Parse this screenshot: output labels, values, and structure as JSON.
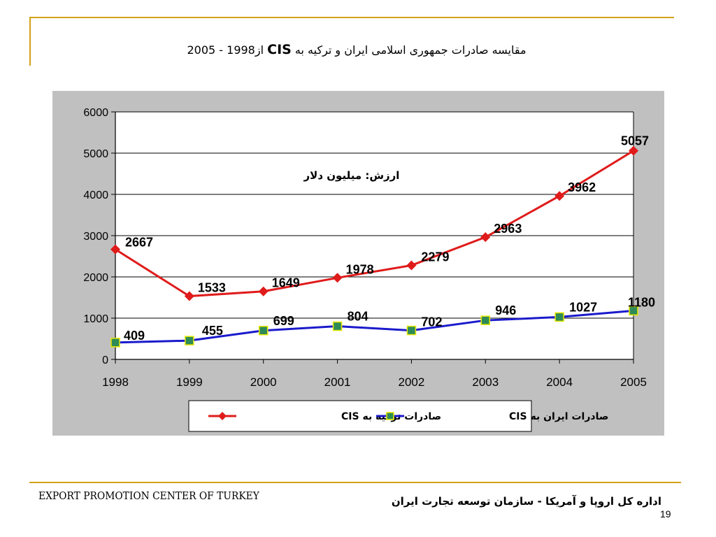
{
  "slide": {
    "title_text": "مقایسه صادرات جمهوری اسلامی ایران و ترکیه به",
    "title_cis": "CIS",
    "title_range": "از1998 - 2005",
    "footer_left": "EXPORT PROMOTION CENTER OF TURKEY",
    "footer_right": "اداره کل اروپا و آمریکا - سازمان توسعه تجارت ایران",
    "page_number": "19"
  },
  "chart_data": {
    "type": "line",
    "title": "",
    "annotation": "ارزش: میلیون دلار",
    "xlabel": "",
    "ylabel": "",
    "x": [
      "1998",
      "1999",
      "2000",
      "2001",
      "2002",
      "2003",
      "2004",
      "2005"
    ],
    "ylim": [
      0,
      6000
    ],
    "yticks": [
      "0",
      "1000",
      "2000",
      "3000",
      "4000",
      "5000",
      "6000"
    ],
    "grid": true,
    "legend_position": "bottom",
    "series": [
      {
        "name": "صادرات ترکیه به CIS",
        "color": "#e01b1b",
        "marker": "diamond",
        "values": [
          2667,
          1533,
          1649,
          1978,
          2279,
          2963,
          3962,
          5057
        ]
      },
      {
        "name": "صادرات ایران به CIS",
        "color": "#1a1acc",
        "marker": "square",
        "marker_color": "#2e8b57",
        "values": [
          409,
          455,
          699,
          804,
          702,
          946,
          1027,
          1180
        ]
      }
    ]
  },
  "colors": {
    "accent": "#d4a017",
    "chart_bg": "#c0c0c0",
    "plot_bg": "#ffffff"
  }
}
